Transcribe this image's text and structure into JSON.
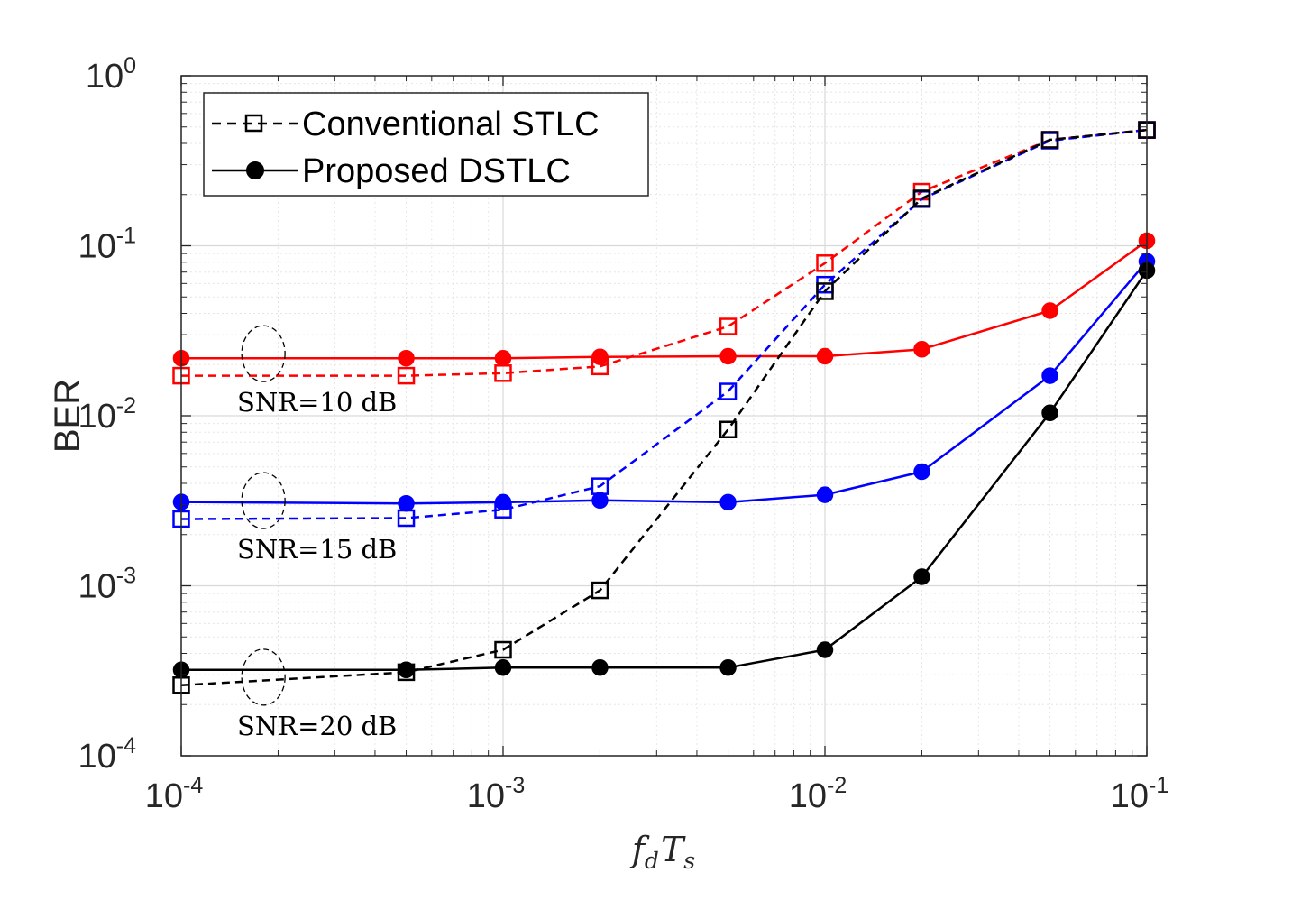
{
  "chart_data": {
    "type": "line",
    "title": "",
    "xlabel": {
      "main": "f",
      "main_sub": "d",
      "second": "T",
      "second_sub": "s"
    },
    "ylabel": "BER",
    "xscale": "log",
    "yscale": "log",
    "xlim": [
      0.0001,
      0.1
    ],
    "ylim": [
      0.0001,
      1
    ],
    "grid": true,
    "minor_grid": true,
    "x_ticks": [
      {
        "value": 0.0001,
        "base": "10",
        "exp": "-4"
      },
      {
        "value": 0.001,
        "base": "10",
        "exp": "-3"
      },
      {
        "value": 0.01,
        "base": "10",
        "exp": "-2"
      },
      {
        "value": 0.1,
        "base": "10",
        "exp": "-1"
      }
    ],
    "y_ticks": [
      {
        "value": 0.0001,
        "base": "10",
        "exp": "-4"
      },
      {
        "value": 0.001,
        "base": "10",
        "exp": "-3"
      },
      {
        "value": 0.01,
        "base": "10",
        "exp": "-2"
      },
      {
        "value": 0.1,
        "base": "10",
        "exp": "-1"
      },
      {
        "value": 1,
        "base": "10",
        "exp": "0"
      }
    ],
    "x": [
      0.0001,
      0.0005,
      0.001,
      0.002,
      0.005,
      0.01,
      0.02,
      0.05,
      0.1
    ],
    "legend": {
      "placement": "top-left",
      "entries": [
        {
          "label": "Conventional STLC",
          "style": "dashed",
          "marker": "square-open",
          "color": "#000000"
        },
        {
          "label": "Proposed DSTLC",
          "style": "solid",
          "marker": "circle-filled",
          "color": "#000000"
        }
      ]
    },
    "series": [
      {
        "name": "Conventional STLC, SNR=10 dB",
        "color": "#ff0000",
        "style": "dashed",
        "marker": "square-open",
        "values": [
          0.0172,
          0.0172,
          0.0178,
          0.0195,
          0.0335,
          0.079,
          0.208,
          0.42,
          0.48
        ]
      },
      {
        "name": "Proposed DSTLC, SNR=10 dB",
        "color": "#ff0000",
        "style": "solid",
        "marker": "circle-filled",
        "values": [
          0.0218,
          0.0218,
          0.0218,
          0.0222,
          0.0224,
          0.0224,
          0.0246,
          0.0415,
          0.107
        ]
      },
      {
        "name": "Conventional STLC, SNR=15 dB",
        "color": "#0000ff",
        "style": "dashed",
        "marker": "square-open",
        "values": [
          0.00247,
          0.0025,
          0.0028,
          0.00385,
          0.0139,
          0.059,
          0.188,
          0.415,
          0.48
        ]
      },
      {
        "name": "Proposed DSTLC, SNR=15 dB",
        "color": "#0000ff",
        "style": "solid",
        "marker": "circle-filled",
        "values": [
          0.00311,
          0.00305,
          0.0031,
          0.00318,
          0.0031,
          0.00343,
          0.00469,
          0.0172,
          0.081
        ]
      },
      {
        "name": "Conventional STLC, SNR=20 dB",
        "color": "#000000",
        "style": "dashed",
        "marker": "square-open",
        "values": [
          0.00026,
          0.00031,
          0.00042,
          0.00094,
          0.0083,
          0.054,
          0.19,
          0.42,
          0.48
        ]
      },
      {
        "name": "Proposed DSTLC, SNR=20 dB",
        "color": "#000000",
        "style": "solid",
        "marker": "circle-filled",
        "values": [
          0.00032,
          0.00032,
          0.00033,
          0.00033,
          0.00033,
          0.00042,
          0.00113,
          0.0104,
          0.0715
        ]
      }
    ],
    "annotations": [
      {
        "text": "SNR=10 dB",
        "ellipse_center": [
          0.00018,
          0.0232
        ]
      },
      {
        "text": "SNR=15 dB",
        "ellipse_center": [
          0.00018,
          0.00317
        ]
      },
      {
        "text": "SNR=20 dB",
        "ellipse_center": [
          0.00018,
          0.00029
        ]
      }
    ]
  }
}
